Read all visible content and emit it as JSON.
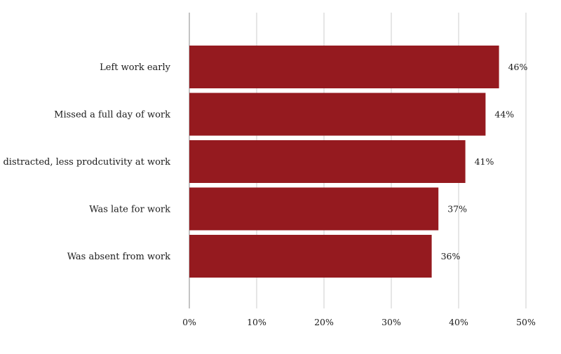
{
  "chart_data": {
    "type": "bar",
    "orientation": "horizontal",
    "title": "",
    "xlabel": "",
    "ylabel": "",
    "categories": [
      "Left work early",
      "Missed a full day of work",
      "Was distracted, less prodcutivity at work",
      "Was late for work",
      "Was absent from work"
    ],
    "values": [
      46,
      44,
      41,
      37,
      36
    ],
    "data_labels": [
      "46%",
      "44%",
      "41%",
      "37%",
      "36%"
    ],
    "xlim": [
      0,
      50
    ],
    "ticks": [
      0,
      10,
      20,
      30,
      40,
      50
    ],
    "tick_labels": [
      "0%",
      "10%",
      "20%",
      "30%",
      "40%",
      "50%"
    ],
    "grid": true,
    "legend": "none",
    "colors": {
      "bar": "#951a1f",
      "grid": "#cccccc",
      "axis": "#888888"
    }
  }
}
